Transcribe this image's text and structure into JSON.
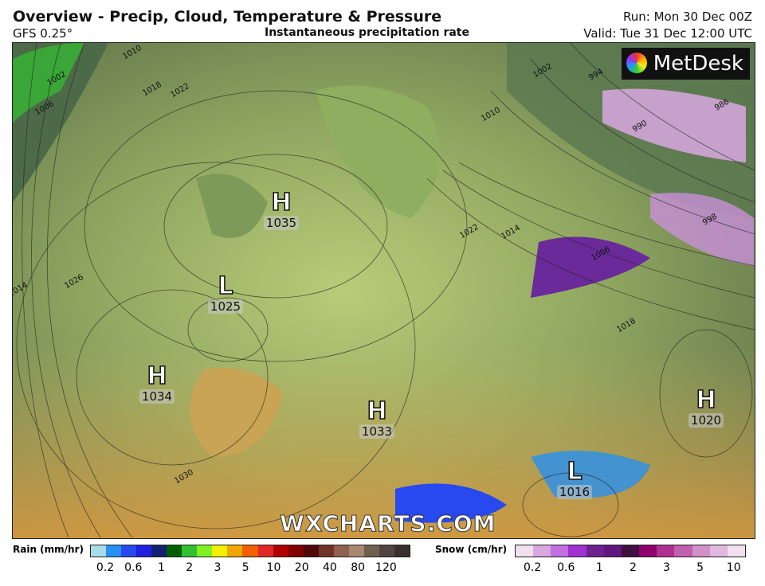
{
  "header": {
    "title": "Overview - Precip, Cloud, Temperature & Pressure",
    "model": "GFS 0.25°",
    "subtitle": "Instantaneous precipitation rate",
    "run": "Run: Mon 30 Dec 00Z",
    "valid": "Valid: Tue 31 Dec 12:00 UTC"
  },
  "logo": "MetDesk",
  "watermark": "WXCHARTS.COM",
  "systems": [
    {
      "type": "H",
      "value": "1035"
    },
    {
      "type": "L",
      "value": "1025"
    },
    {
      "type": "H",
      "value": "1034"
    },
    {
      "type": "H",
      "value": "1033"
    },
    {
      "type": "L",
      "value": "1016"
    },
    {
      "type": "H",
      "value": "1020"
    }
  ],
  "isobar_labels": [
    "1010",
    "1018",
    "1022",
    "1002",
    "1006",
    "1014",
    "1026",
    "1030",
    "1022",
    "1014",
    "1010",
    "1006",
    "1002",
    "994",
    "986",
    "990",
    "998",
    "1018"
  ],
  "rain_legend": {
    "label": "Rain (mm/hr)",
    "ticks": [
      "0.2",
      "0.6",
      "1",
      "2",
      "3",
      "5",
      "10",
      "20",
      "40",
      "80",
      "120"
    ],
    "colors": [
      "#a8dce8",
      "#2890f0",
      "#2848f0",
      "#2020e0",
      "#142070",
      "#006000",
      "#30c030",
      "#80f020",
      "#f0f000",
      "#f0a800",
      "#f06000",
      "#e02828",
      "#b00000",
      "#800000",
      "#500808",
      "#703428",
      "#906050",
      "#a88870",
      "#706050",
      "#504440",
      "#383030"
    ]
  },
  "snow_legend": {
    "label": "Snow (cm/hr)",
    "ticks": [
      "0.2",
      "0.6",
      "1",
      "2",
      "3",
      "5",
      "10"
    ],
    "colors": [
      "#f0e0f0",
      "#d8a8e0",
      "#c070e0",
      "#a030d0",
      "#702090",
      "#601880",
      "#401040",
      "#900070",
      "#b03090",
      "#c060b0",
      "#d090c8",
      "#e0b8e0",
      "#f0e0f0"
    ]
  }
}
